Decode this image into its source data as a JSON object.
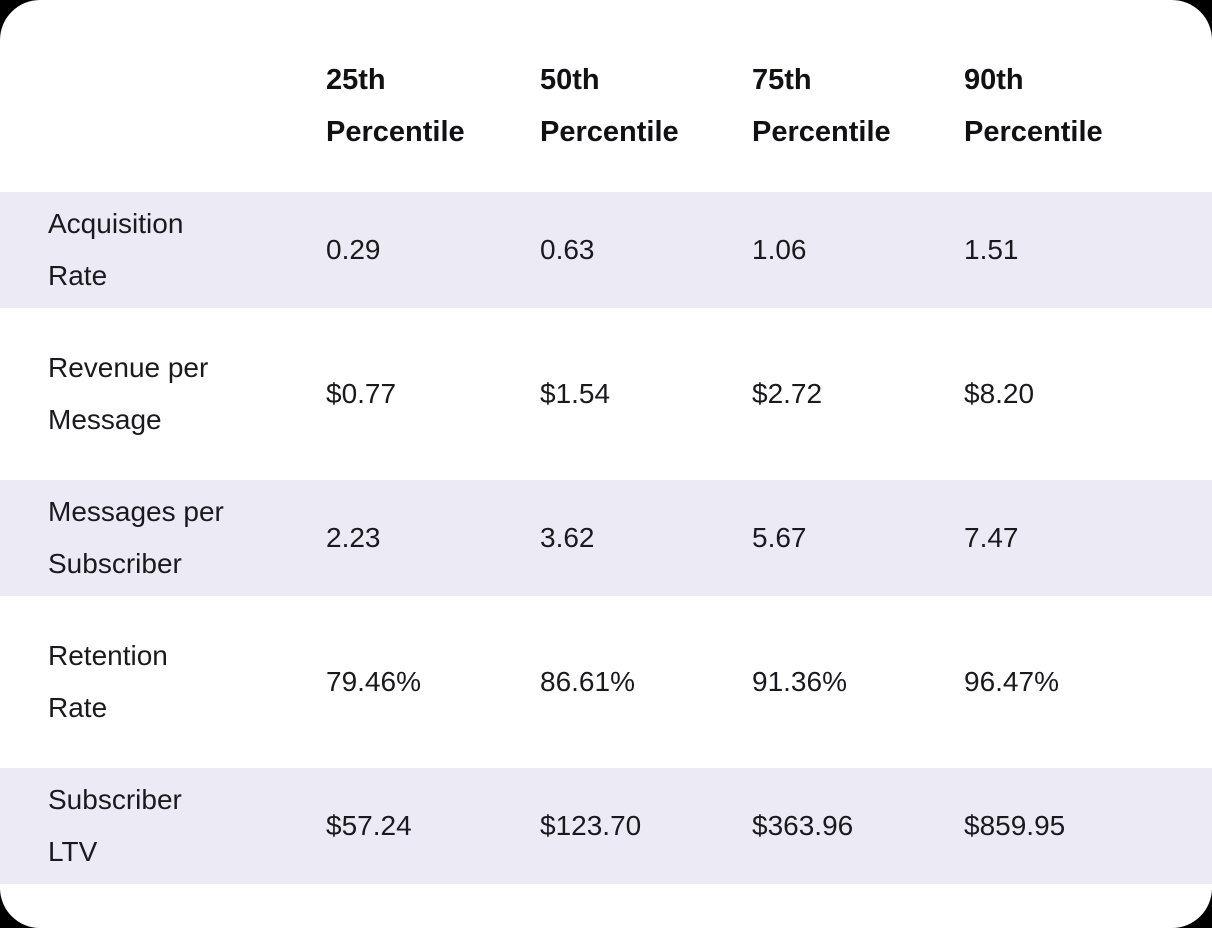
{
  "colors": {
    "page-bg": "#000000",
    "card-bg": "#FFFFFF",
    "stripe": "#ECEBF5",
    "header-text": "#111114",
    "body-text": "#1A1A1E"
  },
  "table": {
    "header": {
      "columns": [
        {
          "line1": "25th",
          "line2": "Percentile"
        },
        {
          "line1": "50th",
          "line2": "Percentile"
        },
        {
          "line1": "75th",
          "line2": "Percentile"
        },
        {
          "line1": "90th",
          "line2": "Percentile"
        }
      ]
    },
    "rows": [
      {
        "label_line1": "Acquisition",
        "label_line2": "Rate",
        "values": [
          "0.29",
          "0.63",
          "1.06",
          "1.51"
        ]
      },
      {
        "label_line1": "Revenue per",
        "label_line2": "Message",
        "values": [
          "$0.77",
          "$1.54",
          "$2.72",
          "$8.20"
        ]
      },
      {
        "label_line1": "Messages per",
        "label_line2": "Subscriber",
        "values": [
          "2.23",
          "3.62",
          "5.67",
          "7.47"
        ]
      },
      {
        "label_line1": "Retention",
        "label_line2": "Rate",
        "values": [
          "79.46%",
          "86.61%",
          "91.36%",
          "96.47%"
        ]
      },
      {
        "label_line1": "Subscriber",
        "label_line2": "LTV",
        "values": [
          "$57.24",
          "$123.70",
          "$363.96",
          "$859.95"
        ]
      }
    ]
  },
  "chart_data": {
    "type": "table",
    "columns": [
      "",
      "25th Percentile",
      "50th Percentile",
      "75th Percentile",
      "90th Percentile"
    ],
    "rows": [
      [
        "Acquisition Rate",
        "0.29",
        "0.63",
        "1.06",
        "1.51"
      ],
      [
        "Revenue per Message",
        "$0.77",
        "$1.54",
        "$2.72",
        "$8.20"
      ],
      [
        "Messages per Subscriber",
        "2.23",
        "3.62",
        "5.67",
        "7.47"
      ],
      [
        "Retention Rate",
        "79.46%",
        "86.61%",
        "91.36%",
        "96.47%"
      ],
      [
        "Subscriber LTV",
        "$57.24",
        "$123.70",
        "$363.96",
        "$859.95"
      ]
    ]
  }
}
